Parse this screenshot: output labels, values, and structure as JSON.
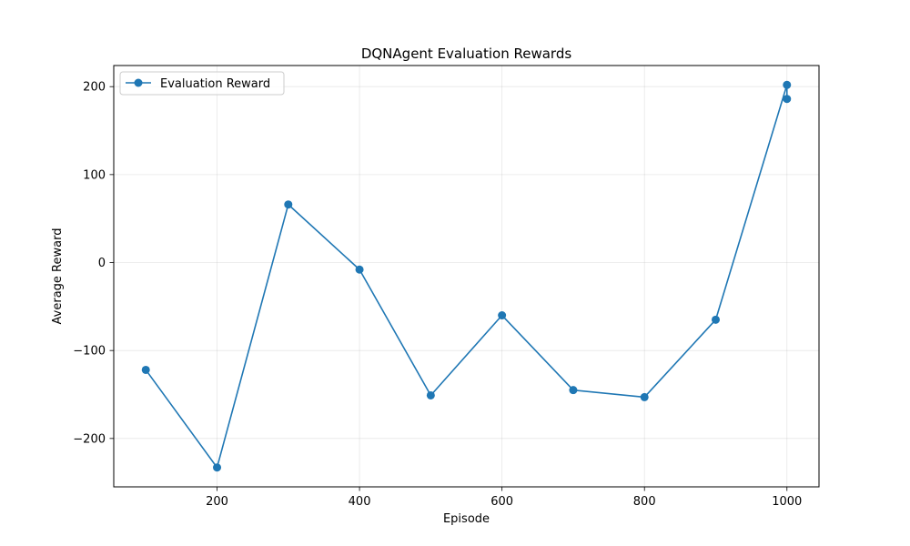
{
  "chart_data": {
    "type": "line",
    "title": "DQNAgent Evaluation Rewards",
    "xlabel": "Episode",
    "ylabel": "Average Reward",
    "xlim": [
      55,
      1045
    ],
    "ylim": [
      -255,
      224
    ],
    "xticks": [
      200,
      400,
      600,
      800,
      1000
    ],
    "xtick_labels": [
      "200",
      "400",
      "600",
      "800",
      "1000"
    ],
    "yticks": [
      -200,
      -100,
      0,
      100,
      200
    ],
    "ytick_labels": [
      "−200",
      "−100",
      "0",
      "100",
      "200"
    ],
    "grid": true,
    "legend_position": "top-left",
    "color": "#1f77b4",
    "series": [
      {
        "name": "Evaluation Reward",
        "x": [
          100,
          200,
          300,
          400,
          500,
          600,
          700,
          800,
          900,
          1000,
          1000
        ],
        "y": [
          -122,
          -233,
          66,
          -8,
          -151,
          -60,
          -145,
          -153,
          -65,
          202,
          186
        ]
      }
    ]
  }
}
